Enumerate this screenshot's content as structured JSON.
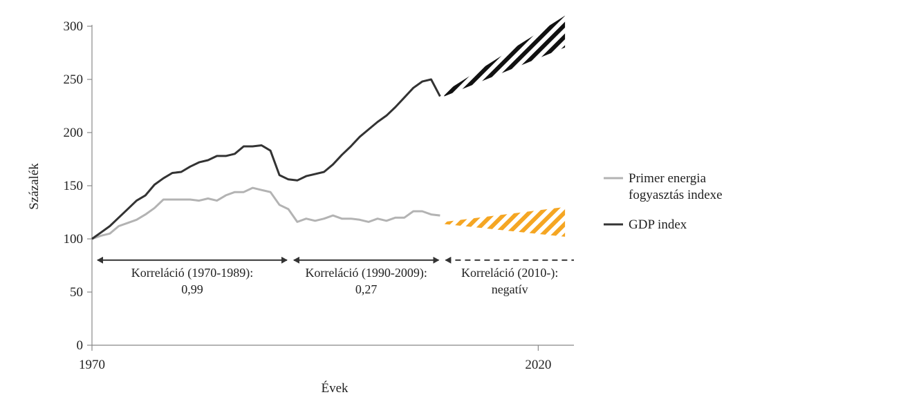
{
  "chart_data": {
    "type": "line",
    "xlabel": "Évek",
    "ylabel": "Százalék",
    "xlim": [
      1970,
      2024
    ],
    "ylim": [
      0,
      300
    ],
    "yticks": [
      0,
      50,
      100,
      150,
      200,
      250,
      300
    ],
    "xticks": [
      1970,
      2020
    ],
    "grid": false,
    "legend_position": "right",
    "series": [
      {
        "name": "Primer energia fogyasztás indexe",
        "color": "#b3b3b3",
        "x": [
          1970,
          1971,
          1972,
          1973,
          1974,
          1975,
          1976,
          1977,
          1978,
          1979,
          1980,
          1981,
          1982,
          1983,
          1984,
          1985,
          1986,
          1987,
          1988,
          1989,
          1990,
          1991,
          1992,
          1993,
          1994,
          1995,
          1996,
          1997,
          1998,
          1999,
          2000,
          2001,
          2002,
          2003,
          2004,
          2005,
          2006,
          2007,
          2008,
          2009
        ],
        "values": [
          100,
          103,
          105,
          112,
          115,
          118,
          123,
          129,
          137,
          137,
          137,
          137,
          136,
          138,
          136,
          141,
          144,
          144,
          148,
          146,
          144,
          132,
          128,
          116,
          119,
          117,
          119,
          122,
          119,
          119,
          118,
          116,
          119,
          117,
          120,
          120,
          126,
          126,
          123,
          122
        ]
      },
      {
        "name": "GDP index",
        "color": "#333333",
        "x": [
          1970,
          1971,
          1972,
          1973,
          1974,
          1975,
          1976,
          1977,
          1978,
          1979,
          1980,
          1981,
          1982,
          1983,
          1984,
          1985,
          1986,
          1987,
          1988,
          1989,
          1990,
          1991,
          1992,
          1993,
          1994,
          1995,
          1996,
          1997,
          1998,
          1999,
          2000,
          2001,
          2002,
          2003,
          2004,
          2005,
          2006,
          2007,
          2008,
          2009
        ],
        "values": [
          100,
          106,
          112,
          120,
          128,
          136,
          141,
          151,
          157,
          162,
          163,
          168,
          172,
          174,
          178,
          178,
          180,
          187,
          187,
          188,
          183,
          160,
          156,
          155,
          159,
          161,
          163,
          170,
          179,
          187,
          196,
          203,
          210,
          216,
          224,
          233,
          242,
          248,
          250,
          234
        ]
      }
    ],
    "projections": [
      {
        "series": "GDP index",
        "color": "#111111",
        "x_start": 2009,
        "x_end": 2023,
        "upper_start": 238,
        "upper_end": 310,
        "lower_start": 234,
        "lower_end": 280
      },
      {
        "series": "Primer energia fogyasztás indexe",
        "color": "#f5a623",
        "x_start": 2009,
        "x_end": 2023,
        "upper_start": 116,
        "upper_end": 130,
        "lower_start": 114,
        "lower_end": 102
      }
    ],
    "annotations": [
      {
        "x_start": 1970,
        "x_end": 1992,
        "line": "solid",
        "y": 80,
        "line1": "Korreláció (1970-1989):",
        "line2": "0,99"
      },
      {
        "x_start": 1992,
        "x_end": 2009,
        "line": "solid",
        "y": 80,
        "line1": "Korreláció (1990-2009):",
        "line2": "0,27"
      },
      {
        "x_start": 2009,
        "x_end": 2023,
        "line": "dashed",
        "y": 80,
        "line1": "Korreláció (2010-):",
        "line2": "negatív"
      }
    ]
  }
}
